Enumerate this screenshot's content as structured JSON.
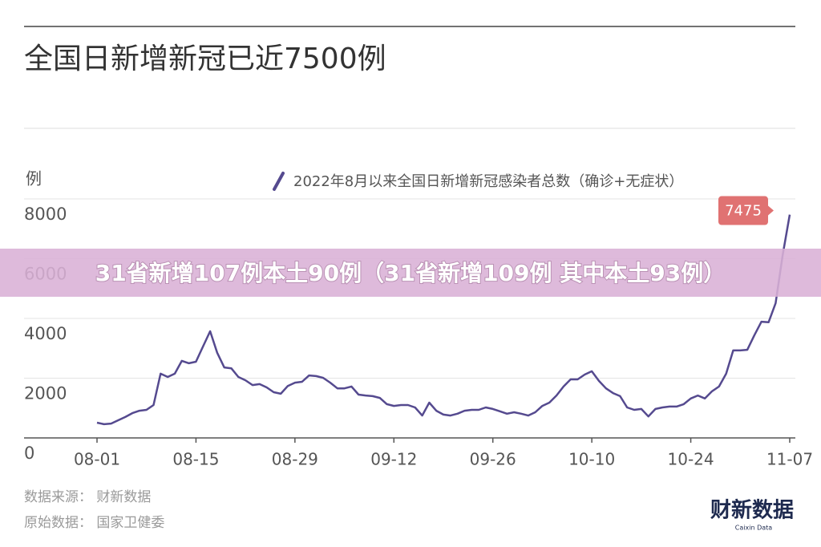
{
  "chart_data": {
    "type": "line",
    "title": "全国日新增新冠已近7500例",
    "y_label": "例",
    "categories": [
      "08-01",
      null,
      null,
      null,
      null,
      null,
      null,
      null,
      null,
      null,
      null,
      null,
      null,
      null,
      "08-15",
      null,
      null,
      null,
      null,
      null,
      null,
      null,
      null,
      null,
      null,
      null,
      null,
      null,
      "08-29",
      null,
      null,
      null,
      null,
      null,
      null,
      null,
      null,
      null,
      null,
      null,
      null,
      null,
      "09-12",
      null,
      null,
      null,
      null,
      null,
      null,
      null,
      null,
      null,
      null,
      null,
      null,
      null,
      "09-26",
      null,
      null,
      null,
      null,
      null,
      null,
      null,
      null,
      null,
      null,
      null,
      null,
      null,
      "10-10",
      null,
      null,
      null,
      null,
      null,
      null,
      null,
      null,
      null,
      null,
      null,
      null,
      null,
      "10-24",
      null,
      null,
      null,
      null,
      null,
      null,
      null,
      null,
      null,
      null,
      null,
      null,
      null,
      "11-07"
    ],
    "series": [
      {
        "name": "2022年8月以来全国日新增新冠感染者总数（确诊+无症状）",
        "color": "#554a8f",
        "values": [
          510,
          460,
          480,
          590,
          700,
          830,
          910,
          940,
          1100,
          2150,
          2040,
          2150,
          2580,
          2500,
          2550,
          3060,
          3570,
          2850,
          2360,
          2330,
          2040,
          1930,
          1770,
          1800,
          1690,
          1530,
          1480,
          1740,
          1850,
          1880,
          2090,
          2070,
          2010,
          1850,
          1660,
          1660,
          1720,
          1450,
          1420,
          1400,
          1340,
          1130,
          1070,
          1100,
          1100,
          1020,
          750,
          1180,
          910,
          780,
          750,
          810,
          910,
          940,
          940,
          1020,
          970,
          890,
          810,
          860,
          810,
          750,
          860,
          1070,
          1180,
          1420,
          1720,
          1960,
          1960,
          2120,
          2230,
          1910,
          1660,
          1500,
          1400,
          1020,
          940,
          970,
          720,
          970,
          1020,
          1050,
          1050,
          1130,
          1320,
          1420,
          1320,
          1560,
          1720,
          2150,
          2930,
          2930,
          2950,
          3440,
          3890,
          3870,
          4510,
          6120,
          7475
        ]
      }
    ],
    "ylim": [
      0,
      8000
    ],
    "yticks": [
      0,
      2000,
      4000,
      6000,
      8000
    ],
    "grid": true,
    "annotation_color": "#e07272",
    "source": [
      "数据来源： 财新数据",
      "原始数据： 国家卫健委"
    ]
  },
  "banner": "31省新增107例本土90例（31省新增109例 其中本土93例）",
  "logo": {
    "title": "财新数据",
    "subtitle": "Caixin Data"
  }
}
